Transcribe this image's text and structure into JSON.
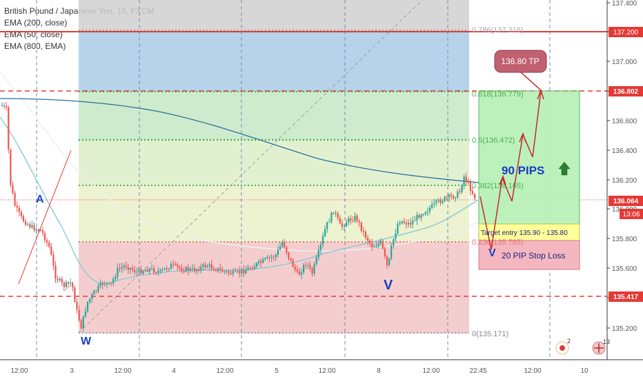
{
  "legend": {
    "symbol": "British Pound / Japanese Yen, 15, FXCM",
    "ema1": "EMA (200, close)",
    "ema2": "EMA (50, close)",
    "ema3": "EMA (800, EMA)"
  },
  "price_axis": {
    "ticks": [
      "137.400",
      "137.200",
      "137.000",
      "136.800",
      "136.600",
      "136.400",
      "136.200",
      "136.000",
      "135.800",
      "135.600",
      "135.400",
      "135.200"
    ],
    "badges": {
      "top_red": "137.200",
      "tp_line": "136.802",
      "current_price": "136.064",
      "countdown": "13:06",
      "stop_line": "135.417"
    }
  },
  "time_axis": {
    "ticks": [
      "12:00",
      "3",
      "12:00",
      "4",
      "12:00",
      "5",
      "12:00",
      "8",
      "12:00",
      "22:45",
      "12:00",
      "10"
    ],
    "current_time": "22:45"
  },
  "fib_labels": {
    "f786": "0.786(137.216)",
    "f618": "0.618(136.779)",
    "f5": "0.5(136.472)",
    "f382": "0.382(136.165)",
    "f236": "0.236(135.785)",
    "f0": "0(135.171)"
  },
  "annotations": {
    "tp_callout": "136.80 TP",
    "pips": "90 PIPS",
    "target_entry": "Target entry 135.90 - 135.80",
    "stop_loss": "20 PIP Stop Loss",
    "label_a": "A",
    "label_w": "W",
    "label_v1": "V",
    "label_v2": "V"
  },
  "indicators": {
    "notification_count": "2",
    "flag_count": "13"
  },
  "colors": {
    "candle_up": "#26a69a",
    "candle_down": "#ef5350",
    "ema200": "#2a6f9b",
    "ema50": "#7fc8d6",
    "ema800": "#e8e8e8",
    "red_line": "#e53935",
    "label_blue": "#1a3cc4",
    "tp_box": "#c06070"
  }
}
